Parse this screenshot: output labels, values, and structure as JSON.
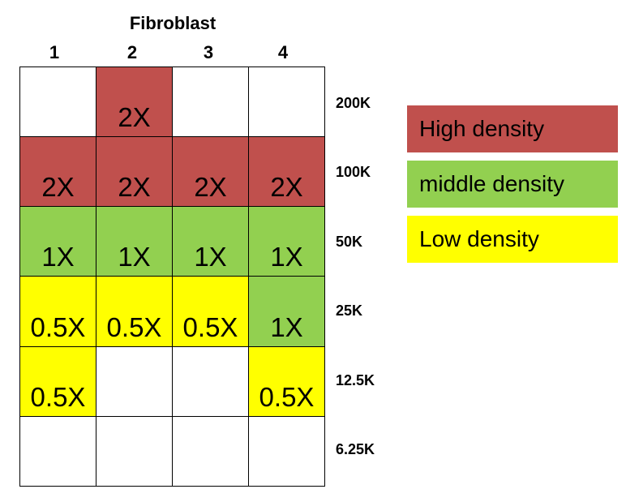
{
  "title": "Fibroblast",
  "columns": [
    "1",
    "2",
    "3",
    "4"
  ],
  "rows": [
    {
      "label": "200K",
      "cells": [
        {
          "text": "",
          "color": "#ffffff"
        },
        {
          "text": "2X",
          "color": "#c0504d"
        },
        {
          "text": "",
          "color": "#ffffff"
        },
        {
          "text": "",
          "color": "#ffffff"
        }
      ]
    },
    {
      "label": "100K",
      "cells": [
        {
          "text": "2X",
          "color": "#c0504d"
        },
        {
          "text": "2X",
          "color": "#c0504d"
        },
        {
          "text": "2X",
          "color": "#c0504d"
        },
        {
          "text": "2X",
          "color": "#c0504d"
        }
      ]
    },
    {
      "label": "50K",
      "cells": [
        {
          "text": "1X",
          "color": "#92d050"
        },
        {
          "text": "1X",
          "color": "#92d050"
        },
        {
          "text": "1X",
          "color": "#92d050"
        },
        {
          "text": "1X",
          "color": "#92d050"
        }
      ]
    },
    {
      "label": "25K",
      "cells": [
        {
          "text": "0.5X",
          "color": "#ffff00"
        },
        {
          "text": "0.5X",
          "color": "#ffff00"
        },
        {
          "text": "0.5X",
          "color": "#ffff00"
        },
        {
          "text": "1X",
          "color": "#92d050"
        }
      ]
    },
    {
      "label": "12.5K",
      "cells": [
        {
          "text": "0.5X",
          "color": "#ffff00"
        },
        {
          "text": "",
          "color": "#ffffff"
        },
        {
          "text": "",
          "color": "#ffffff"
        },
        {
          "text": "0.5X",
          "color": "#ffff00"
        }
      ]
    },
    {
      "label": "6.25K",
      "cells": [
        {
          "text": "",
          "color": "#ffffff"
        },
        {
          "text": "",
          "color": "#ffffff"
        },
        {
          "text": "",
          "color": "#ffffff"
        },
        {
          "text": "",
          "color": "#ffffff"
        }
      ]
    }
  ],
  "legend": [
    {
      "label": "High density",
      "color": "#c0504d"
    },
    {
      "label": "middle density",
      "color": "#92d050"
    },
    {
      "label": "Low density",
      "color": "#ffff00"
    }
  ]
}
